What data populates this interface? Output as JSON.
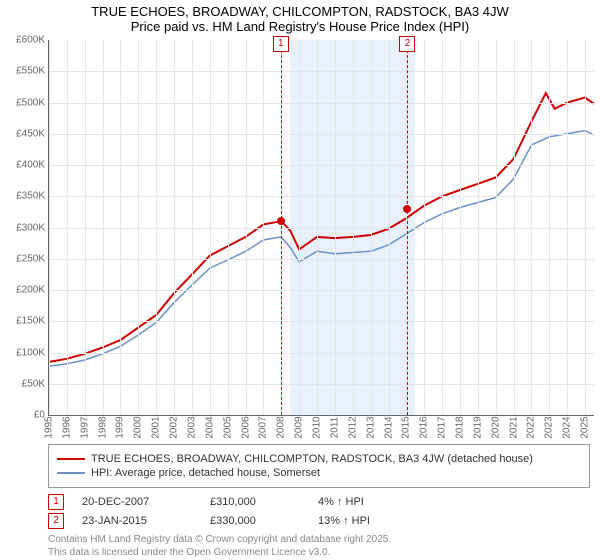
{
  "title": "TRUE ECHOES, BROADWAY, CHILCOMPTON, RADSTOCK, BA3 4JW",
  "subtitle": "Price paid vs. HM Land Registry's House Price Index (HPI)",
  "chart": {
    "type": "line",
    "background_color": "#ffffff",
    "grid_color": "#e5e5e5",
    "axis_color": "#666666",
    "x_years": [
      1995,
      1996,
      1997,
      1998,
      1999,
      2000,
      2001,
      2002,
      2003,
      2004,
      2005,
      2006,
      2007,
      2008,
      2009,
      2010,
      2011,
      2012,
      2013,
      2014,
      2015,
      2016,
      2017,
      2018,
      2019,
      2020,
      2021,
      2022,
      2023,
      2024,
      2025
    ],
    "xlim": [
      1995,
      2025.5
    ],
    "ylim": [
      0,
      600
    ],
    "ytick_step": 50,
    "ytick_prefix": "£",
    "ytick_suffix": "K",
    "shaded_band": {
      "start": 2008.5,
      "end": 2015.5,
      "color": "#e8f0fb"
    },
    "label_fontsize": 10,
    "title_fontsize": 13,
    "series": [
      {
        "name": "TRUE ECHOES, BROADWAY, CHILCOMPTON, RADSTOCK, BA3 4JW (detached house)",
        "color": "#cc0000",
        "width": 2,
        "x": [
          1995,
          1996,
          1997,
          1998,
          1999,
          2000,
          2001,
          2002,
          2003,
          2004,
          2005,
          2006,
          2007,
          2008,
          2008.5,
          2009,
          2010,
          2011,
          2012,
          2013,
          2014,
          2015,
          2016,
          2017,
          2018,
          2019,
          2020,
          2021,
          2022,
          2022.8,
          2023.3,
          2024,
          2025,
          2025.5
        ],
        "y": [
          85,
          90,
          98,
          108,
          120,
          140,
          160,
          195,
          225,
          255,
          270,
          285,
          305,
          310,
          295,
          265,
          285,
          283,
          285,
          288,
          298,
          315,
          335,
          350,
          360,
          370,
          380,
          410,
          470,
          515,
          490,
          500,
          508,
          498
        ]
      },
      {
        "name": "HPI: Average price, detached house, Somerset",
        "color": "#6a8fc7",
        "width": 1.5,
        "x": [
          1995,
          1996,
          1997,
          1998,
          1999,
          2000,
          2001,
          2002,
          2003,
          2004,
          2005,
          2006,
          2007,
          2008,
          2008.5,
          2009,
          2010,
          2011,
          2012,
          2013,
          2014,
          2015,
          2016,
          2017,
          2018,
          2019,
          2020,
          2021,
          2022,
          2023,
          2024,
          2025,
          2025.5
        ],
        "y": [
          78,
          82,
          88,
          98,
          110,
          128,
          148,
          180,
          208,
          235,
          248,
          262,
          280,
          285,
          268,
          245,
          262,
          258,
          260,
          262,
          272,
          290,
          308,
          322,
          332,
          340,
          348,
          378,
          432,
          445,
          450,
          455,
          448
        ]
      }
    ],
    "sale_markers": [
      {
        "num": "1",
        "year": 2007.97,
        "price_k": 310
      },
      {
        "num": "2",
        "year": 2015.06,
        "price_k": 330
      }
    ]
  },
  "legend": {
    "items": [
      {
        "color": "#cc0000",
        "label": "TRUE ECHOES, BROADWAY, CHILCOMPTON, RADSTOCK, BA3 4JW (detached house)"
      },
      {
        "color": "#6a8fc7",
        "label": "HPI: Average price, detached house, Somerset"
      }
    ]
  },
  "sales": [
    {
      "num": "1",
      "date": "20-DEC-2007",
      "price": "£310,000",
      "change": "4% ↑ HPI"
    },
    {
      "num": "2",
      "date": "23-JAN-2015",
      "price": "£330,000",
      "change": "13% ↑ HPI"
    }
  ],
  "footer": {
    "line1": "Contains HM Land Registry data © Crown copyright and database right 2025.",
    "line2": "This data is licensed under the Open Government Licence v3.0."
  }
}
